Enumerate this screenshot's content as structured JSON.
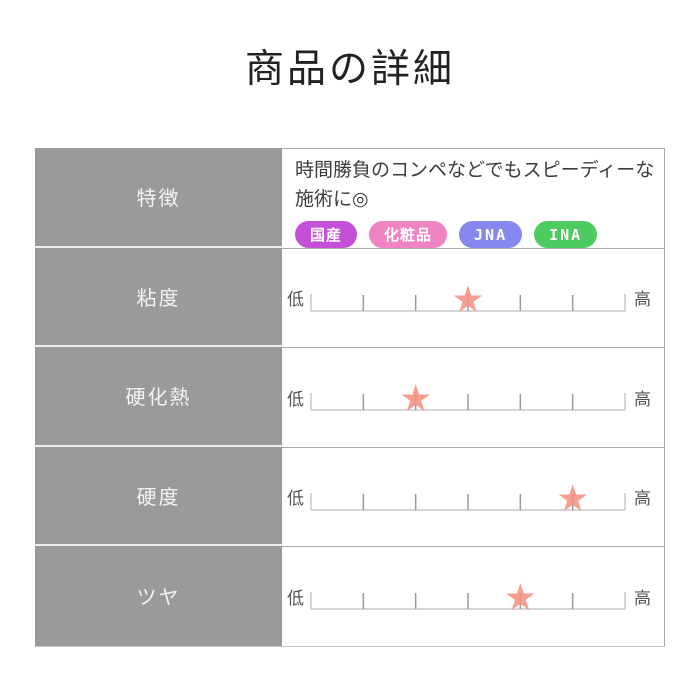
{
  "page": {
    "title": "商品の詳細"
  },
  "table": {
    "rows": [
      {
        "label": "特徴"
      },
      {
        "label": "粘度"
      },
      {
        "label": "硬化熱"
      },
      {
        "label": "硬度"
      },
      {
        "label": "ツヤ"
      }
    ]
  },
  "feature": {
    "description": "時間勝負のコンペなどでもスピーディーな施術に◎",
    "badges": [
      {
        "label": "国産",
        "color": "#c450d8"
      },
      {
        "label": "化粧品",
        "color": "#f083c1"
      },
      {
        "label": "JNA",
        "color": "#8488ef"
      },
      {
        "label": "INA",
        "color": "#4ecb60"
      }
    ]
  },
  "chart_data": {
    "type": "rating_scale",
    "title": "商品の詳細",
    "categories": [
      "粘度",
      "硬化熱",
      "硬度",
      "ツヤ"
    ],
    "values": [
      3,
      2,
      5,
      4
    ],
    "scale": {
      "min": 0,
      "max": 6,
      "ticks": 7,
      "min_label": "低",
      "max_label": "高"
    },
    "marker": "star"
  },
  "colors": {
    "header_cell_bg": "#9a9a9a",
    "header_cell_text": "#f3f3f3",
    "cell_border": "#a8a8a8",
    "left_row_divider": "#ededed",
    "body_text": "#3c3c3c",
    "scale_label": "#555555",
    "scale_line": "#c9c9c9",
    "scale_tick": "#9a9a9a",
    "star": "#f5917f"
  }
}
